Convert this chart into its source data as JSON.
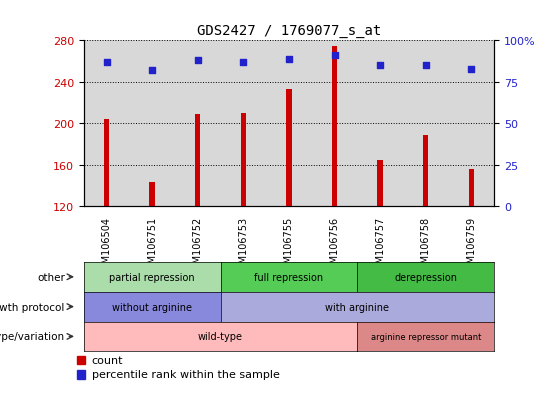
{
  "title": "GDS2427 / 1769077_s_at",
  "samples": [
    "GSM106504",
    "GSM106751",
    "GSM106752",
    "GSM106753",
    "GSM106755",
    "GSM106756",
    "GSM106757",
    "GSM106758",
    "GSM106759"
  ],
  "counts": [
    204,
    143,
    209,
    210,
    233,
    275,
    164,
    189,
    156
  ],
  "percentiles": [
    87,
    82,
    88,
    87,
    89,
    91,
    85,
    85,
    83
  ],
  "ylim_left": [
    120,
    280
  ],
  "ylim_right": [
    0,
    100
  ],
  "yticks_left": [
    120,
    160,
    200,
    240,
    280
  ],
  "yticks_right": [
    0,
    25,
    50,
    75,
    100
  ],
  "bar_color": "#cc0000",
  "dot_color": "#2222cc",
  "bar_bottom": 120,
  "bar_width": 0.12,
  "chart_bg": "#d8d8d8",
  "annotation_rows": [
    {
      "label": "other",
      "segments": [
        {
          "text": "partial repression",
          "start": 0,
          "end": 3,
          "color": "#aaddaa"
        },
        {
          "text": "full repression",
          "start": 3,
          "end": 6,
          "color": "#55cc55"
        },
        {
          "text": "derepression",
          "start": 6,
          "end": 9,
          "color": "#44bb44"
        }
      ]
    },
    {
      "label": "growth protocol",
      "segments": [
        {
          "text": "without arginine",
          "start": 0,
          "end": 3,
          "color": "#8888dd"
        },
        {
          "text": "with arginine",
          "start": 3,
          "end": 9,
          "color": "#aaaadd"
        }
      ]
    },
    {
      "label": "genotype/variation",
      "segments": [
        {
          "text": "wild-type",
          "start": 0,
          "end": 6,
          "color": "#ffbbbb"
        },
        {
          "text": "arginine repressor mutant",
          "start": 6,
          "end": 9,
          "color": "#dd8888"
        }
      ]
    }
  ],
  "legend_items": [
    {
      "color": "#cc0000",
      "label": "count"
    },
    {
      "color": "#2222cc",
      "label": "percentile rank within the sample"
    }
  ]
}
